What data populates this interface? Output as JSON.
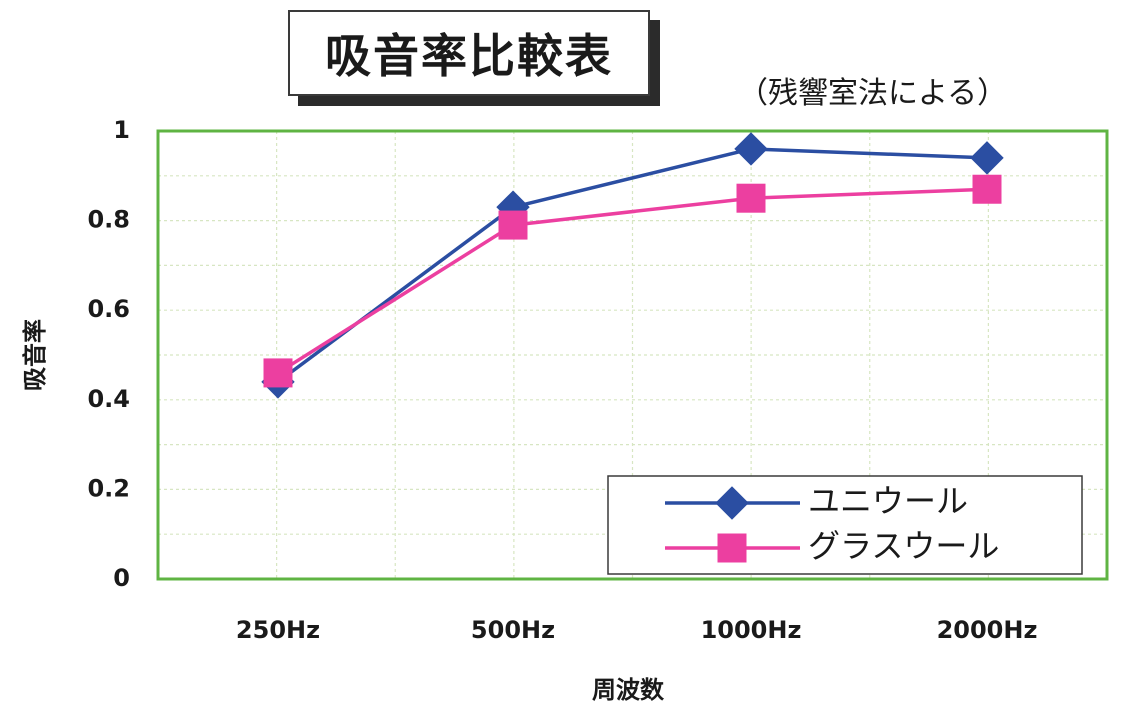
{
  "chart_data": {
    "type": "line",
    "title": "吸音率比較表",
    "subtitle": "（残響室法による）",
    "xlabel": "周波数",
    "ylabel": "吸音率",
    "categories": [
      "250Hz",
      "500Hz",
      "1000Hz",
      "2000Hz"
    ],
    "yticks": [
      "0",
      "0.2",
      "0.4",
      "0.6",
      "0.8",
      "1"
    ],
    "ylim": [
      0,
      1
    ],
    "grid": true,
    "legend_position": "bottom-right",
    "series": [
      {
        "name": "ユニウール",
        "values": [
          0.44,
          0.83,
          0.96,
          0.94
        ],
        "color": "#2b4ea2",
        "marker": "diamond"
      },
      {
        "name": "グラスウール",
        "values": [
          0.46,
          0.79,
          0.85,
          0.87
        ],
        "color": "#ec3fa0",
        "marker": "square"
      }
    ]
  },
  "colors": {
    "plot_border": "#5fb443",
    "grid": "#d7e6c2",
    "text": "#1a1a1a"
  }
}
